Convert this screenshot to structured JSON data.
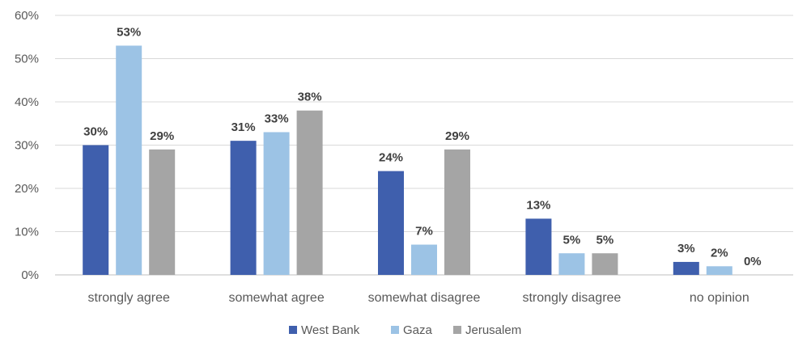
{
  "chart_data": {
    "type": "bar",
    "categories": [
      "strongly agree",
      "somewhat agree",
      "somewhat disagree",
      "strongly disagree",
      "no opinion"
    ],
    "series": [
      {
        "name": "West Bank",
        "color": "#3f5fad",
        "values": [
          30,
          31,
          24,
          13,
          3
        ]
      },
      {
        "name": "Gaza",
        "color": "#9cc3e5",
        "values": [
          53,
          33,
          7,
          5,
          2
        ]
      },
      {
        "name": "Jerusalem",
        "color": "#a5a5a5",
        "values": [
          29,
          38,
          29,
          5,
          0
        ]
      }
    ],
    "data_label_suffix": "%",
    "y_ticks": [
      "0%",
      "10%",
      "20%",
      "30%",
      "40%",
      "50%",
      "60%"
    ],
    "ylim": [
      0,
      60
    ],
    "grid": true,
    "legend_position": "bottom"
  }
}
